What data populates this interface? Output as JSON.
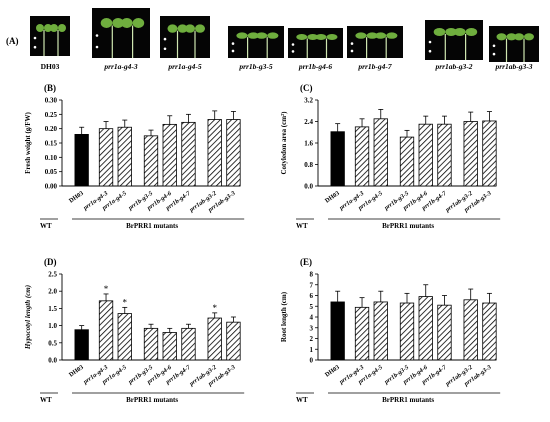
{
  "photos": {
    "panel_label": "(A)",
    "items": [
      {
        "label": "DH03"
      },
      {
        "label": "prr1a-g4-3"
      },
      {
        "label": "prr1a-g4-5"
      },
      {
        "label": "prr1b-g3-5"
      },
      {
        "label": "prr1b-g4-6"
      },
      {
        "label": "prr1b-g4-7"
      },
      {
        "label": "prr1ab-g3-2"
      },
      {
        "label": "prr1ab-g3-3"
      }
    ]
  },
  "chart_data": [
    {
      "panel": "(B)",
      "type": "bar",
      "ylabel": "Fresh weight (g/FW)",
      "ylim": [
        0,
        0.3
      ],
      "yticks": [
        "0.00",
        "0.05",
        "0.10",
        "0.15",
        "0.20",
        "0.25",
        "0.30"
      ],
      "categories": [
        "DH03",
        "prr1a-g4-3",
        "prr1a-g4-5",
        "prr1b-g3-5",
        "prr1b-g4-6",
        "prr1b-g4-7",
        "prr1ab-g3-2",
        "prr1ab-g3-3"
      ],
      "values": [
        0.18,
        0.2,
        0.205,
        0.175,
        0.215,
        0.222,
        0.232,
        0.232
      ],
      "errors": [
        0.025,
        0.025,
        0.025,
        0.02,
        0.03,
        0.028,
        0.03,
        0.028
      ],
      "groups": [
        "WT",
        "BrPRR1 mutants"
      ]
    },
    {
      "panel": "(C)",
      "type": "bar",
      "ylabel": "Cotyledon area (cm²)",
      "ylim": [
        0,
        3.2
      ],
      "yticks": [
        "0.0",
        "0.8",
        "1.6",
        "2.4",
        "3.2"
      ],
      "categories": [
        "DH03",
        "prr1a-g4-3",
        "prr1a-g4-5",
        "prr1b-g3-5",
        "prr1b-g4-6",
        "prr1b-g4-7",
        "prr1ab-g3-2",
        "prr1ab-g3-3"
      ],
      "values": [
        2.02,
        2.2,
        2.5,
        1.82,
        2.3,
        2.3,
        2.4,
        2.42
      ],
      "errors": [
        0.3,
        0.3,
        0.35,
        0.25,
        0.3,
        0.3,
        0.35,
        0.35
      ],
      "groups": [
        "WT",
        "BrPRR1 mutants"
      ]
    },
    {
      "panel": "(D)",
      "type": "bar",
      "ylabel": "Hypocotyl length (cm)",
      "ylim": [
        0,
        2.5
      ],
      "yticks": [
        "0.0",
        "0.5",
        "1.0",
        "1.5",
        "2.0",
        "2.5"
      ],
      "categories": [
        "DH03",
        "prr1a-g4-3",
        "prr1a-g4-5",
        "prr1b-g3-5",
        "prr1b-g4-6",
        "prr1b-g4-7",
        "prr1ab-g3-2",
        "prr1ab-g3-3"
      ],
      "values": [
        0.88,
        1.72,
        1.35,
        0.92,
        0.8,
        0.92,
        1.22,
        1.1
      ],
      "errors": [
        0.12,
        0.2,
        0.18,
        0.12,
        0.12,
        0.12,
        0.15,
        0.15
      ],
      "significant": [
        false,
        true,
        true,
        false,
        false,
        false,
        true,
        false
      ],
      "significance_mark": "*",
      "groups": [
        "WT",
        "BrPRR1 mutants"
      ]
    },
    {
      "panel": "(E)",
      "type": "bar",
      "ylabel": "Root length (cm)",
      "ylim": [
        0,
        8
      ],
      "yticks": [
        "0",
        "1",
        "2",
        "3",
        "4",
        "5",
        "6",
        "7",
        "8"
      ],
      "categories": [
        "DH03",
        "prr1a-g4-3",
        "prr1a-g4-5",
        "prr1b-g3-5",
        "prr1b-g4-6",
        "prr1b-g4-7",
        "prr1ab-g3-2",
        "prr1ab-g3-3"
      ],
      "values": [
        5.4,
        4.9,
        5.4,
        5.3,
        5.9,
        5.1,
        5.6,
        5.3
      ],
      "errors": [
        1.0,
        0.9,
        1.0,
        0.9,
        1.1,
        0.9,
        1.0,
        0.9
      ],
      "groups": [
        "WT",
        "BrPRR1 mutants"
      ]
    }
  ],
  "colors": {
    "wt_bar": "#000000",
    "mutant_bar_fill": "#ffffff",
    "hatch": "#000000",
    "photo_bg": "#050505",
    "seedling": "#6fae3e"
  }
}
